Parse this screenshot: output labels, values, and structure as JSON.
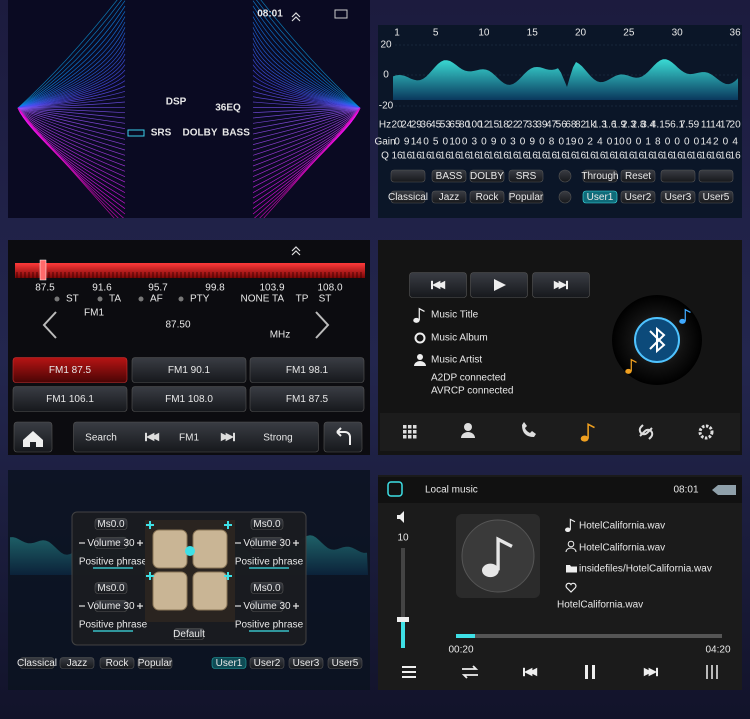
{
  "dsp_splash": {
    "time": "08:01",
    "title": "DSP",
    "subtitle": "36EQ",
    "logos": [
      "SRS",
      "DOLBY",
      "BASS"
    ]
  },
  "equalizer": {
    "band_numbers": [
      "1",
      "5",
      "10",
      "15",
      "20",
      "25",
      "30",
      "36"
    ],
    "level_labels": [
      "20",
      "0",
      "-20"
    ],
    "row_labels": [
      "Hz",
      "Gain",
      "Q"
    ],
    "hz": [
      "20",
      "24",
      "29",
      "36",
      "45",
      "53",
      "65",
      "80",
      "100",
      "12",
      "15",
      "18",
      "22",
      "27",
      "33",
      "39",
      "47",
      "56",
      "68",
      "82",
      "1k",
      "1.3",
      "1.6",
      "1.9",
      "2.3",
      "2.8",
      "3.4",
      "4.1",
      "5",
      "6.1",
      "7.5",
      "9",
      "11",
      "14",
      "17",
      "20"
    ],
    "gain": [
      0,
      9,
      14,
      0,
      5,
      0,
      10,
      0,
      3,
      0,
      9,
      0,
      3,
      0,
      9,
      0,
      8,
      0,
      19,
      0,
      2,
      4,
      0,
      10,
      0,
      0,
      1,
      8,
      0,
      0,
      0,
      0,
      14,
      2,
      0,
      4
    ],
    "q": [
      16,
      16,
      16,
      16,
      16,
      16,
      16,
      16,
      16,
      16,
      16,
      16,
      16,
      16,
      16,
      16,
      16,
      16,
      16,
      16,
      16,
      16,
      16,
      16,
      16,
      16,
      16,
      16,
      16,
      16,
      16,
      16,
      16,
      16,
      16,
      16
    ],
    "buttons_top": [
      "BASS",
      "DOLBY",
      "SRS",
      "Through",
      "Reset"
    ],
    "buttons_bottom": [
      "Classical",
      "Jazz",
      "Rock",
      "Popular",
      "User1",
      "User2",
      "User3",
      "User5"
    ]
  },
  "radio": {
    "scale": [
      "87.5",
      "91.6",
      "95.7",
      "99.8",
      "103.9",
      "108.0"
    ],
    "indicators_left": [
      "ST",
      "TA",
      "AF",
      "PTY"
    ],
    "indicators_right": [
      "NONE",
      "TA",
      "TP",
      "ST"
    ],
    "band": "FM1",
    "frequency": "87.50",
    "unit": "MHz",
    "presets": [
      "FM1 87.5",
      "FM1 90.1",
      "FM1 98.1",
      "FM1 106.1",
      "FM1 108.0",
      "FM1 87.5"
    ],
    "controls": {
      "search": "Search",
      "band": "FM1",
      "signal": "Strong"
    }
  },
  "bluetooth": {
    "title": "Music Title",
    "album": "Music Album",
    "artist": "Music Artist",
    "status": [
      "A2DP connected",
      "AVRCP connected"
    ]
  },
  "balance": {
    "channels": [
      {
        "delay": "Ms0.0",
        "volume": "Volume 30",
        "phase": "Positive phrase"
      },
      {
        "delay": "Ms0.0",
        "volume": "Volume 30",
        "phase": "Positive phrase"
      },
      {
        "delay": "Ms0.0",
        "volume": "Volume 30",
        "phase": "Positive phrase"
      },
      {
        "delay": "Ms0.0",
        "volume": "Volume 30",
        "phase": "Positive phrase"
      }
    ],
    "default": "Default",
    "presets": [
      "Classical",
      "Jazz",
      "Rock",
      "Popular",
      "User1",
      "User2",
      "User3",
      "User5"
    ]
  },
  "local_music": {
    "header": "Local music",
    "time": "08:01",
    "volume": "10",
    "song": "HotelCalifornia.wav",
    "artist": "HotelCalifornia.wav",
    "path": "insidefiles/HotelCalifornia.wav",
    "now_playing": "HotelCalifornia.wav",
    "elapsed": "00:20",
    "duration": "04:20"
  }
}
